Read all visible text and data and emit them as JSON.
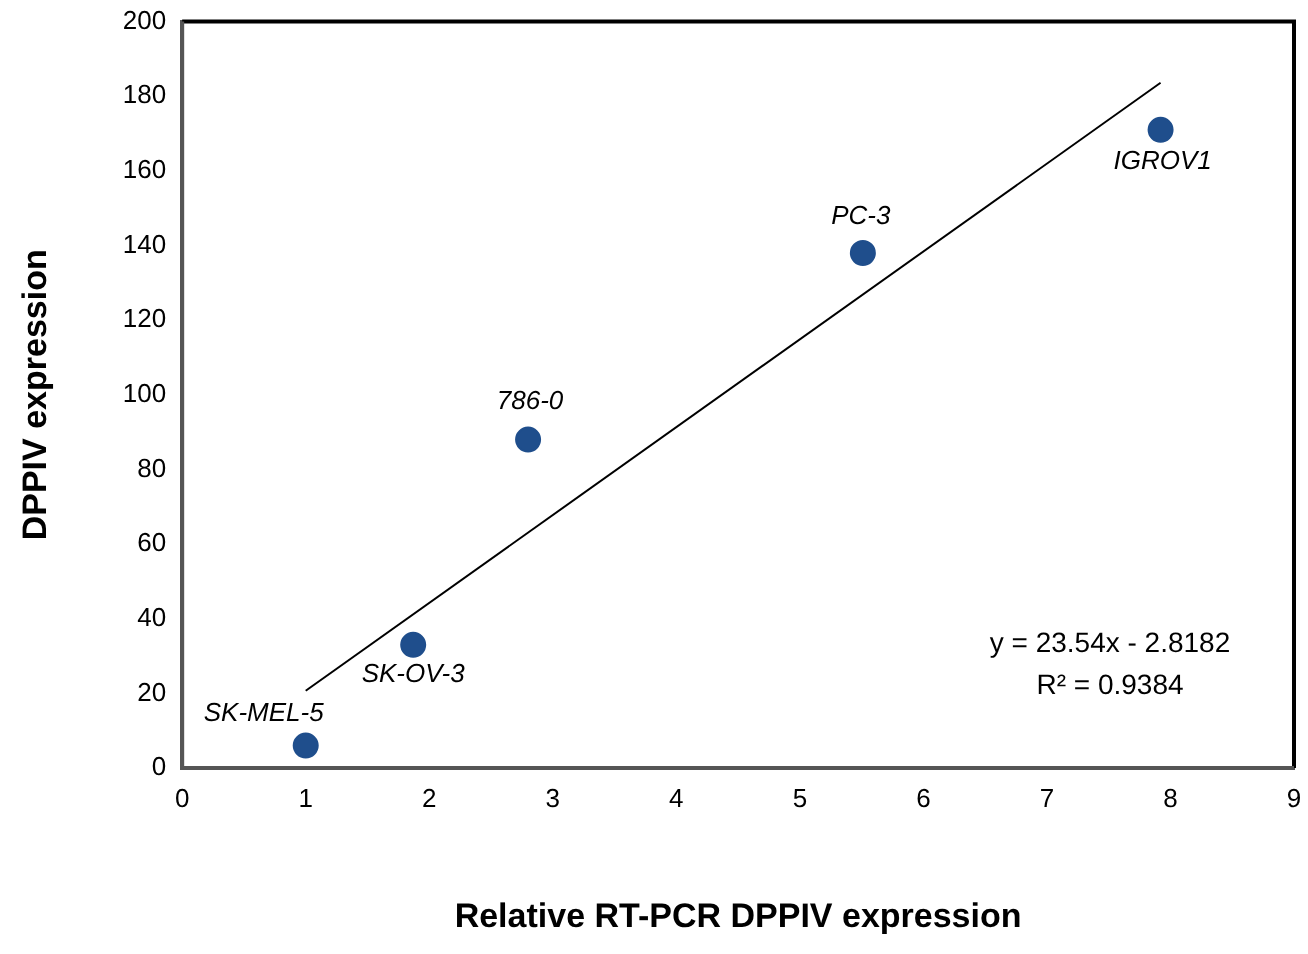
{
  "chart_data": {
    "type": "scatter",
    "xlabel": "Relative RT-PCR DPPIV expression",
    "ylabel": "DPPIV expression",
    "x": [
      1.0,
      1.87,
      2.8,
      5.51,
      7.92
    ],
    "series": [
      {
        "color": "#1f4e8c",
        "values": [
          6,
          33,
          88,
          138,
          171
        ]
      },
      {
        "type": "line",
        "color": "#000000",
        "x": [
          1.0,
          7.92
        ],
        "values": [
          20.7,
          183.6
        ],
        "marker": "none"
      }
    ],
    "xlim": [
      0,
      9
    ],
    "xticks": [
      0,
      1,
      2,
      3,
      4,
      5,
      6,
      7,
      8,
      9
    ],
    "ylim": [
      0,
      200
    ],
    "yticks": [
      0,
      20,
      40,
      60,
      80,
      100,
      120,
      140,
      160,
      180,
      200
    ],
    "grid": false,
    "legend": false,
    "marker": "circle",
    "annotations": [
      {
        "text": "SK-MEL-5",
        "x": 1.0,
        "y": 6
      },
      {
        "text": "SK-OV-3",
        "x": 1.87,
        "y": 33
      },
      {
        "text": "786-0",
        "x": 2.8,
        "y": 88
      },
      {
        "text": "PC-3",
        "x": 5.51,
        "y": 138
      },
      {
        "text": "IGROV1",
        "x": 7.92,
        "y": 171
      },
      "y = 23.54x - 2.8182",
      "R² = 0.9384"
    ]
  }
}
